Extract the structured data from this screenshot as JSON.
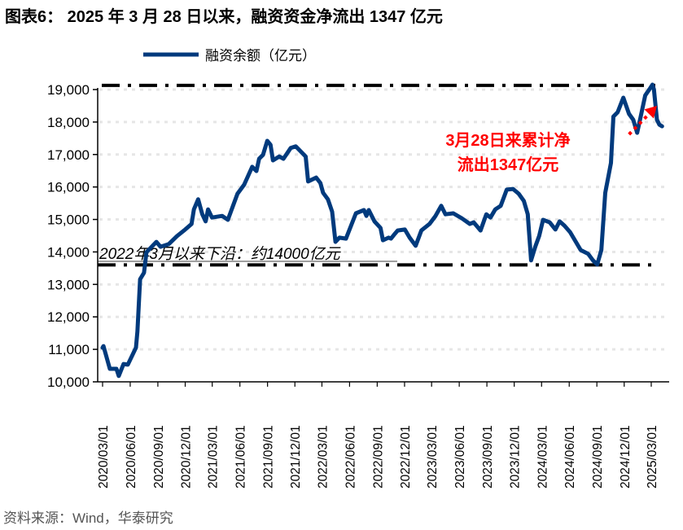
{
  "title": "图表6：  2025 年 3 月 28 日以来，融资资金净流出 1347 亿元",
  "source": "资料来源：Wind，华泰研究",
  "chart_data": {
    "type": "line",
    "title": "",
    "xlabel": "",
    "ylabel": "",
    "ylim": [
      10000,
      19000
    ],
    "yticks": [
      "10,000",
      "11,000",
      "12,000",
      "13,000",
      "14,000",
      "15,000",
      "16,000",
      "17,000",
      "18,000",
      "19,000"
    ],
    "ytick_values": [
      10000,
      11000,
      12000,
      13000,
      14000,
      15000,
      16000,
      17000,
      18000,
      19000
    ],
    "xticks": [
      "2020/03/01",
      "2020/06/01",
      "2020/09/01",
      "2020/12/01",
      "2021/03/01",
      "2021/06/01",
      "2021/09/01",
      "2021/12/01",
      "2022/03/01",
      "2022/06/01",
      "2022/09/01",
      "2022/12/01",
      "2023/03/01",
      "2023/06/01",
      "2023/09/01",
      "2023/12/01",
      "2024/03/01",
      "2024/06/01",
      "2024/09/01",
      "2024/12/01",
      "2025/03/01"
    ],
    "grid": "horizontal dotted",
    "legend_position": "top-left",
    "colors": {
      "series": "#003a7d",
      "annotation": "#ff0000",
      "reference": "#000000",
      "grid": "#e6e6e6"
    },
    "series": [
      {
        "name": "融资余额（亿元）",
        "x": [
          "2020-03-01",
          "2020-03-04",
          "2020-03-25",
          "2020-04-16",
          "2020-04-24",
          "2020-05-10",
          "2020-05-24",
          "2020-06-20",
          "2020-06-25",
          "2020-07-04",
          "2020-07-17",
          "2020-07-25",
          "2020-08-27",
          "2020-09-10",
          "2020-10-07",
          "2020-11-04",
          "2020-12-01",
          "2020-12-22",
          "2020-12-30",
          "2021-01-13",
          "2021-01-27",
          "2021-02-07",
          "2021-02-15",
          "2021-02-28",
          "2021-04-03",
          "2021-04-22",
          "2021-05-24",
          "2021-06-15",
          "2021-07-12",
          "2021-07-26",
          "2021-08-04",
          "2021-08-17",
          "2021-08-31",
          "2021-09-11",
          "2021-09-19",
          "2021-10-10",
          "2021-10-24",
          "2021-11-17",
          "2021-12-04",
          "2021-12-23",
          "2022-01-06",
          "2022-01-14",
          "2022-02-10",
          "2022-02-24",
          "2022-03-05",
          "2022-03-21",
          "2022-04-04",
          "2022-04-15",
          "2022-04-28",
          "2022-05-20",
          "2022-06-22",
          "2022-07-19",
          "2022-07-27",
          "2022-08-04",
          "2022-08-23",
          "2022-09-12",
          "2022-09-20",
          "2022-10-09",
          "2022-10-17",
          "2022-10-30",
          "2022-11-08",
          "2022-12-02",
          "2022-12-18",
          "2023-01-07",
          "2023-01-26",
          "2023-02-22",
          "2023-03-14",
          "2023-04-02",
          "2023-04-16",
          "2023-05-12",
          "2023-06-09",
          "2023-07-06",
          "2023-07-19",
          "2023-08-11",
          "2023-08-30",
          "2023-09-13",
          "2023-09-29",
          "2023-10-17",
          "2023-11-06",
          "2023-11-27",
          "2023-12-16",
          "2024-01-02",
          "2024-01-15",
          "2024-01-26",
          "2024-02-09",
          "2024-02-22",
          "2024-03-06",
          "2024-03-28",
          "2024-04-16",
          "2024-04-30",
          "2024-05-16",
          "2024-06-04",
          "2024-06-23",
          "2024-07-09",
          "2024-08-03",
          "2024-08-19",
          "2024-09-02",
          "2024-09-16",
          "2024-09-29",
          "2024-10-18",
          "2024-10-26",
          "2024-11-09",
          "2024-11-28",
          "2024-12-17",
          "2024-12-31",
          "2025-01-13",
          "2025-01-21",
          "2025-02-09",
          "2025-02-26",
          "2025-03-05",
          "2025-03-10",
          "2025-03-20",
          "2025-03-28",
          "2025-04-06"
        ],
        "values": [
          11050,
          11100,
          10400,
          10400,
          10180,
          10550,
          10530,
          11050,
          11550,
          13160,
          13360,
          13990,
          14310,
          14160,
          14240,
          14490,
          14690,
          14860,
          15310,
          15620,
          15160,
          14940,
          15310,
          15060,
          15110,
          14990,
          15790,
          16070,
          16620,
          16490,
          16870,
          16990,
          17420,
          17300,
          16820,
          16940,
          16870,
          17200,
          17250,
          17070,
          16940,
          16170,
          16290,
          16120,
          15820,
          15620,
          15240,
          14310,
          14440,
          14410,
          15190,
          15290,
          15110,
          15290,
          14940,
          14740,
          14360,
          14440,
          14410,
          14560,
          14660,
          14690,
          14440,
          14190,
          14660,
          14860,
          15110,
          15420,
          15160,
          15190,
          15040,
          14860,
          14910,
          14660,
          15160,
          15060,
          15310,
          15420,
          15920,
          15940,
          15790,
          15570,
          15160,
          13740,
          14160,
          14490,
          14990,
          14910,
          14690,
          14940,
          14810,
          14610,
          14310,
          14060,
          13940,
          13740,
          13610,
          14060,
          15820,
          16740,
          18170,
          18300,
          18750,
          18250,
          18070,
          17670,
          18000,
          18820,
          19050,
          19150,
          19000,
          18070,
          17920,
          17870
        ]
      }
    ],
    "reference_lines": [
      {
        "value": 19130,
        "style": "dash-dot"
      },
      {
        "value": 13600,
        "style": "dash-dot",
        "label": "2022年3月以来下沿：约14000亿元"
      }
    ],
    "annotations": [
      {
        "lines": [
          "3月28日来累计净",
          "流出1347亿元"
        ],
        "color": "#ff0000"
      }
    ],
    "arrow": {
      "from": [
        "2024-12-17",
        17620
      ],
      "to": [
        "2025-03-20",
        18500
      ]
    }
  }
}
